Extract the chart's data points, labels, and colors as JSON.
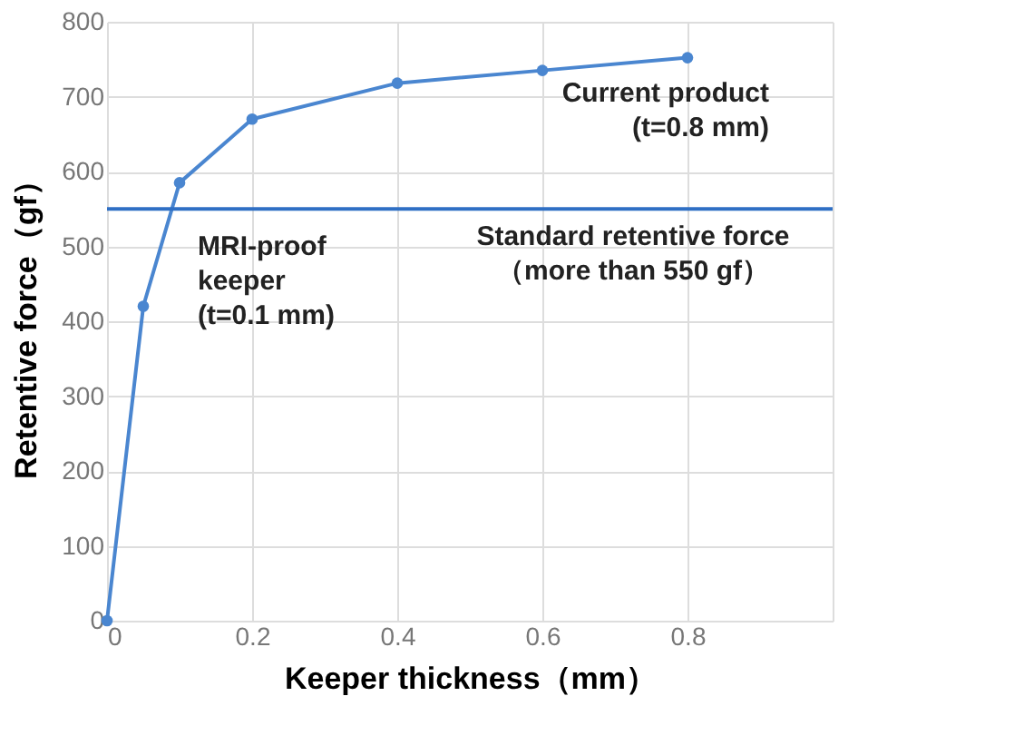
{
  "chart_data": {
    "type": "line",
    "xlabel": "Keeper thickness（mm）",
    "ylabel": "Retentive force（gf）",
    "x": [
      0,
      0.05,
      0.1,
      0.2,
      0.4,
      0.6,
      0.8
    ],
    "series": [
      {
        "color": "#4a86d0",
        "values": [
          0,
          420,
          585,
          670,
          718,
          735,
          752
        ]
      }
    ],
    "xlim": [
      0,
      1
    ],
    "xticks": [
      0,
      0.2,
      0.4,
      0.6,
      0.8,
      {
        "value": 1,
        "label": null
      }
    ],
    "ylim": [
      0,
      800
    ],
    "yticks": [
      0,
      100,
      200,
      300,
      400,
      500,
      600,
      700,
      800
    ],
    "grid": true,
    "marker": "circle",
    "line_style": "solid",
    "ref_lines": [
      {
        "axis": "y",
        "value": 550,
        "label": "Standard retentive force\n（more than 550 gf）",
        "color": "#2f6fc4"
      }
    ],
    "annotations": [
      {
        "text": "MRI-proof\nkeeper\n(t=0.1 mm)",
        "x": 0.1,
        "y": 585
      },
      {
        "text": "Current product\n (t=0.8 mm)",
        "x": 0.8,
        "y": 752
      }
    ]
  }
}
